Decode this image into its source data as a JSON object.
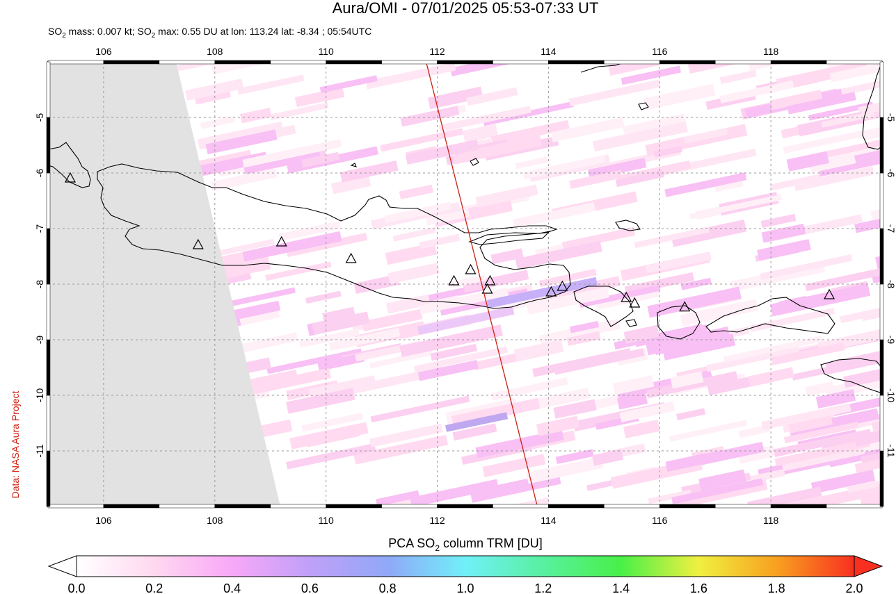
{
  "title": "Aura/OMI - 07/01/2025 05:53-07:33 UT",
  "subtitle": {
    "pre": "SO",
    "sub": "2",
    "mid1": " mass: 0.007 kt; SO",
    "sub2": "2",
    "mid2": " max: 0.55 DU at lon: 113.24 lat: -8.34 ; 05:54UTC"
  },
  "credit": "Data: NASA Aura Project",
  "colorbar": {
    "label_pre": "PCA SO",
    "label_sub": "2",
    "label_post": " column TRM [DU]",
    "ticks": [
      "0.0",
      "0.2",
      "0.4",
      "0.6",
      "0.8",
      "1.0",
      "1.2",
      "1.4",
      "1.6",
      "1.8",
      "2.0"
    ],
    "colors": [
      "#ffffff",
      "#ffd8f0",
      "#f8a8f8",
      "#c0a0f8",
      "#90a8f8",
      "#70f0f8",
      "#58f0a0",
      "#48f048",
      "#f0f040",
      "#f8a020",
      "#f83020"
    ]
  },
  "map_data": {
    "lon_range": [
      105.0,
      120.0
    ],
    "lat_range": [
      -12.0,
      -4.0
    ],
    "lon_ticks": [
      "106",
      "108",
      "110",
      "112",
      "114",
      "116",
      "118"
    ],
    "lat_ticks": [
      "-5",
      "-6",
      "-7",
      "-8",
      "-9",
      "-10",
      "-11"
    ],
    "grid": "dashed",
    "no_data_color": "#e2e2e2",
    "overpass_line": {
      "color": "#cc2010",
      "from": [
        111.8,
        -4.0
      ],
      "to": [
        113.8,
        -12.0
      ]
    },
    "volcano_markers": [
      [
        105.4,
        -6.1
      ],
      [
        107.7,
        -7.3
      ],
      [
        109.2,
        -7.25
      ],
      [
        110.45,
        -7.55
      ],
      [
        112.3,
        -7.95
      ],
      [
        112.6,
        -7.75
      ],
      [
        112.95,
        -7.95
      ],
      [
        112.9,
        -8.1
      ],
      [
        114.05,
        -8.15
      ],
      [
        114.25,
        -8.05
      ],
      [
        115.4,
        -8.25
      ],
      [
        115.55,
        -8.35
      ],
      [
        116.45,
        -8.42
      ],
      [
        119.05,
        -8.2
      ]
    ]
  }
}
